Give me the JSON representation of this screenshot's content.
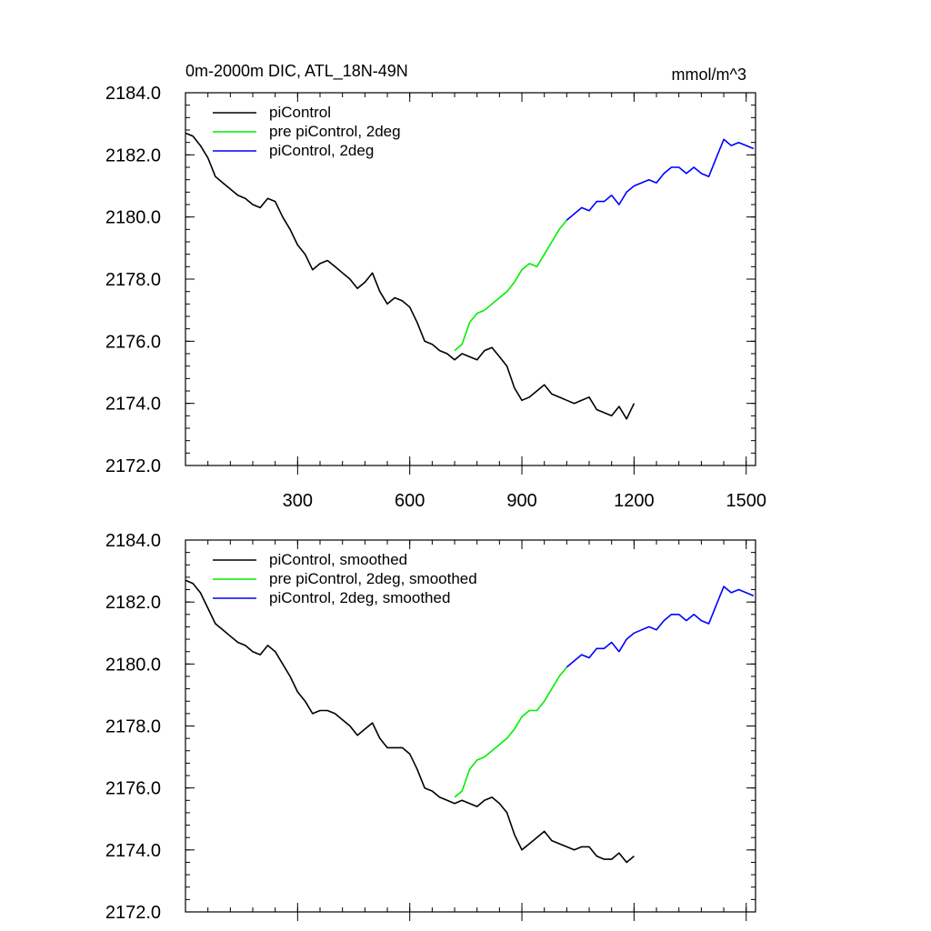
{
  "chart_data": [
    {
      "type": "line",
      "title": "0m-2000m DIC, ATL_18N-49N",
      "units": "mmol/m^3",
      "xlim": [
        0,
        1525
      ],
      "ylim": [
        2172,
        2184
      ],
      "x_ticks": [
        300,
        600,
        900,
        1200,
        1500
      ],
      "x_tick_labels": [
        "300",
        "600",
        "900",
        "1200",
        "1500"
      ],
      "y_ticks": [
        2172,
        2174,
        2176,
        2178,
        2180,
        2182,
        2184
      ],
      "y_tick_labels": [
        "2172.0",
        "2174.0",
        "2176.0",
        "2178.0",
        "2180.0",
        "2182.0",
        "2184.0"
      ],
      "legend_position": "top-left",
      "grid": false,
      "series": [
        {
          "name": "piControl",
          "color": "#000000",
          "x": [
            0,
            20,
            40,
            60,
            80,
            100,
            120,
            140,
            160,
            180,
            200,
            220,
            240,
            260,
            280,
            300,
            320,
            340,
            360,
            380,
            400,
            420,
            440,
            460,
            480,
            500,
            520,
            540,
            560,
            580,
            600,
            620,
            640,
            660,
            680,
            700,
            720,
            740,
            760,
            780,
            800,
            820,
            840,
            860,
            880,
            900,
            920,
            940,
            960,
            980,
            1000,
            1020,
            1040,
            1060,
            1080,
            1100,
            1120,
            1140,
            1160,
            1180,
            1200
          ],
          "values": [
            2182.7,
            2182.6,
            2182.3,
            2181.9,
            2181.3,
            2181.1,
            2180.9,
            2180.7,
            2180.6,
            2180.4,
            2180.3,
            2180.6,
            2180.5,
            2180.0,
            2179.6,
            2179.1,
            2178.8,
            2178.3,
            2178.5,
            2178.6,
            2178.4,
            2178.2,
            2178.0,
            2177.7,
            2177.9,
            2178.2,
            2177.6,
            2177.2,
            2177.4,
            2177.3,
            2177.1,
            2176.6,
            2176.0,
            2175.9,
            2175.7,
            2175.6,
            2175.4,
            2175.6,
            2175.5,
            2175.4,
            2175.7,
            2175.8,
            2175.5,
            2175.2,
            2174.5,
            2174.1,
            2174.2,
            2174.4,
            2174.6,
            2174.3,
            2174.2,
            2174.1,
            2174.0,
            2174.1,
            2174.2,
            2173.8,
            2173.7,
            2173.6,
            2173.9,
            2173.5,
            2174.0
          ]
        },
        {
          "name": "pre piControl, 2deg",
          "color": "#00ee00",
          "x": [
            720,
            740,
            760,
            780,
            800,
            820,
            840,
            860,
            880,
            900,
            920,
            940,
            960,
            980,
            1000,
            1020
          ],
          "values": [
            2175.7,
            2175.9,
            2176.6,
            2176.9,
            2177.0,
            2177.2,
            2177.4,
            2177.6,
            2177.9,
            2178.3,
            2178.5,
            2178.4,
            2178.8,
            2179.2,
            2179.6,
            2179.9
          ]
        },
        {
          "name": "piControl, 2deg",
          "color": "#0000ff",
          "x": [
            1020,
            1040,
            1060,
            1080,
            1100,
            1120,
            1140,
            1160,
            1180,
            1200,
            1220,
            1240,
            1260,
            1280,
            1300,
            1320,
            1340,
            1360,
            1380,
            1400,
            1420,
            1440,
            1460,
            1480,
            1500,
            1520
          ],
          "values": [
            2179.9,
            2180.1,
            2180.3,
            2180.2,
            2180.5,
            2180.5,
            2180.7,
            2180.4,
            2180.8,
            2181.0,
            2181.1,
            2181.2,
            2181.1,
            2181.4,
            2181.6,
            2181.6,
            2181.4,
            2181.6,
            2181.4,
            2181.3,
            2181.9,
            2182.5,
            2182.3,
            2182.4,
            2182.3,
            2182.2
          ]
        }
      ]
    },
    {
      "type": "line",
      "title": "",
      "units": "",
      "xlim": [
        0,
        1525
      ],
      "ylim": [
        2172,
        2184
      ],
      "x_ticks": [
        300,
        600,
        900,
        1200,
        1500
      ],
      "x_tick_labels": [
        "",
        "",
        "",
        "",
        ""
      ],
      "y_ticks": [
        2172,
        2174,
        2176,
        2178,
        2180,
        2182,
        2184
      ],
      "y_tick_labels": [
        "2172.0",
        "2174.0",
        "2176.0",
        "2178.0",
        "2180.0",
        "2182.0",
        "2184.0"
      ],
      "legend_position": "top-left",
      "grid": false,
      "series": [
        {
          "name": "piControl, smoothed",
          "color": "#000000",
          "x": [
            0,
            20,
            40,
            60,
            80,
            100,
            120,
            140,
            160,
            180,
            200,
            220,
            240,
            260,
            280,
            300,
            320,
            340,
            360,
            380,
            400,
            420,
            440,
            460,
            480,
            500,
            520,
            540,
            560,
            580,
            600,
            620,
            640,
            660,
            680,
            700,
            720,
            740,
            760,
            780,
            800,
            820,
            840,
            860,
            880,
            900,
            920,
            940,
            960,
            980,
            1000,
            1020,
            1040,
            1060,
            1080,
            1100,
            1120,
            1140,
            1160,
            1180,
            1200
          ],
          "values": [
            2182.7,
            2182.6,
            2182.3,
            2181.8,
            2181.3,
            2181.1,
            2180.9,
            2180.7,
            2180.6,
            2180.4,
            2180.3,
            2180.6,
            2180.4,
            2180.0,
            2179.6,
            2179.1,
            2178.8,
            2178.4,
            2178.5,
            2178.5,
            2178.4,
            2178.2,
            2178.0,
            2177.7,
            2177.9,
            2178.1,
            2177.6,
            2177.3,
            2177.3,
            2177.3,
            2177.1,
            2176.6,
            2176.0,
            2175.9,
            2175.7,
            2175.6,
            2175.5,
            2175.6,
            2175.5,
            2175.4,
            2175.6,
            2175.7,
            2175.5,
            2175.2,
            2174.5,
            2174.0,
            2174.2,
            2174.4,
            2174.6,
            2174.3,
            2174.2,
            2174.1,
            2174.0,
            2174.1,
            2174.1,
            2173.8,
            2173.7,
            2173.7,
            2173.9,
            2173.6,
            2173.8
          ]
        },
        {
          "name": "pre piControl, 2deg, smoothed",
          "color": "#00ee00",
          "x": [
            720,
            740,
            760,
            780,
            800,
            820,
            840,
            860,
            880,
            900,
            920,
            940,
            960,
            980,
            1000,
            1020
          ],
          "values": [
            2175.7,
            2175.9,
            2176.6,
            2176.9,
            2177.0,
            2177.2,
            2177.4,
            2177.6,
            2177.9,
            2178.3,
            2178.5,
            2178.5,
            2178.8,
            2179.2,
            2179.6,
            2179.9
          ]
        },
        {
          "name": "piControl, 2deg, smoothed",
          "color": "#0000ff",
          "x": [
            1020,
            1040,
            1060,
            1080,
            1100,
            1120,
            1140,
            1160,
            1180,
            1200,
            1220,
            1240,
            1260,
            1280,
            1300,
            1320,
            1340,
            1360,
            1380,
            1400,
            1420,
            1440,
            1460,
            1480,
            1500,
            1520
          ],
          "values": [
            2179.9,
            2180.1,
            2180.3,
            2180.2,
            2180.5,
            2180.5,
            2180.7,
            2180.4,
            2180.8,
            2181.0,
            2181.1,
            2181.2,
            2181.1,
            2181.4,
            2181.6,
            2181.6,
            2181.4,
            2181.6,
            2181.4,
            2181.3,
            2181.9,
            2182.5,
            2182.3,
            2182.4,
            2182.3,
            2182.2
          ]
        }
      ]
    }
  ]
}
